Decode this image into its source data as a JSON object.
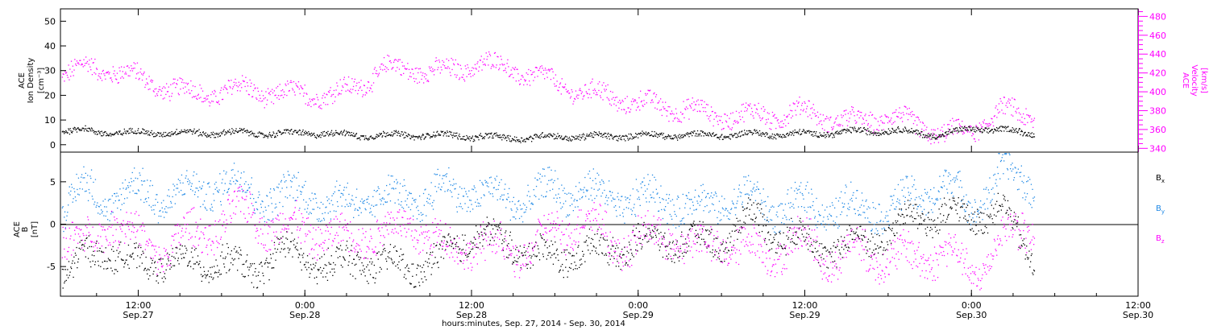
{
  "xaxis": {
    "ticks": [
      {
        "time": "12:00",
        "date": "Sep.27",
        "t": 12
      },
      {
        "time": "0:00",
        "date": "Sep.28",
        "t": 24
      },
      {
        "time": "12:00",
        "date": "Sep.28",
        "t": 36
      },
      {
        "time": "0:00",
        "date": "Sep.29",
        "t": 48
      },
      {
        "time": "12:00",
        "date": "Sep.29",
        "t": 60
      },
      {
        "time": "0:00",
        "date": "Sep.30",
        "t": 72
      },
      {
        "time": "12:00",
        "date": "Sep.30",
        "t": 84
      }
    ],
    "label": "hours:minutes, Sep. 27, 2014 - Sep. 30, 2014",
    "range_hours": [
      6.4,
      84
    ],
    "data_end_hours": 76.5
  },
  "panel1": {
    "left_label": [
      "ACE",
      "Ion Density",
      "[cm⁻³]"
    ],
    "right_label": [
      "ACE",
      "Velocity",
      "[km/s]"
    ],
    "density_color": "#000000",
    "velocity_color": "#ff00ff"
  },
  "panel2": {
    "left_label": [
      "ACE",
      "B",
      "[nT]"
    ],
    "legend": [
      {
        "text": "B",
        "sub": "x",
        "color": "#000000"
      },
      {
        "text": "B",
        "sub": "y",
        "color": "#1e88e5"
      },
      {
        "text": "B",
        "sub": "z",
        "color": "#ff00ff"
      }
    ]
  },
  "chart_data": [
    {
      "type": "scatter",
      "title": "",
      "xlabel": "hours:minutes, Sep. 27, 2014 - Sep. 30, 2014",
      "ylabel": "ACE Ion Density [cm-3]",
      "ylim": [
        -3,
        55
      ],
      "yticks": [
        0,
        10,
        20,
        30,
        40,
        50
      ],
      "y2label": "ACE Velocity [km/s]",
      "y2lim": [
        336,
        488
      ],
      "y2ticks": [
        340,
        360,
        380,
        400,
        420,
        440,
        460,
        480
      ],
      "x_units": "hours since Sep.27 0:00",
      "series": [
        {
          "name": "Ion Density",
          "color": "#000000",
          "axis": "left",
          "x": [
            6.5,
            8,
            10,
            12,
            14,
            16,
            18,
            20,
            22,
            24,
            26,
            28,
            30,
            32,
            34,
            36,
            38,
            40,
            42,
            44,
            46,
            48,
            50,
            52,
            54,
            56,
            58,
            60,
            62,
            64,
            66,
            68,
            70,
            72,
            74,
            76.5
          ],
          "y": [
            6,
            6,
            5,
            5,
            5,
            5,
            5,
            5,
            4.5,
            5,
            4.5,
            4,
            4,
            4,
            4,
            3.5,
            3,
            3,
            3.5,
            3.5,
            3.5,
            4,
            4,
            4,
            4,
            4.5,
            4.5,
            4.5,
            5,
            5.5,
            6,
            5,
            4,
            7,
            6,
            5
          ]
        },
        {
          "name": "Velocity",
          "color": "#ff00ff",
          "axis": "right",
          "x": [
            6.5,
            8,
            10,
            12,
            14,
            16,
            18,
            20,
            22,
            24,
            26,
            28,
            30,
            32,
            34,
            36,
            38,
            40,
            42,
            44,
            46,
            48,
            50,
            52,
            54,
            56,
            58,
            60,
            62,
            64,
            66,
            68,
            70,
            72,
            74,
            76.5
          ],
          "y": [
            420,
            425,
            425,
            415,
            405,
            398,
            400,
            405,
            395,
            400,
            395,
            410,
            425,
            425,
            420,
            430,
            428,
            420,
            410,
            400,
            395,
            388,
            385,
            380,
            375,
            375,
            375,
            380,
            372,
            368,
            375,
            365,
            355,
            360,
            380,
            375
          ]
        }
      ]
    },
    {
      "type": "scatter",
      "title": "",
      "xlabel": "hours:minutes, Sep. 27, 2014 - Sep. 30, 2014",
      "ylabel": "ACE B [nT]",
      "ylim": [
        -8.5,
        8.5
      ],
      "yticks": [
        -5,
        0,
        5
      ],
      "x_units": "hours since Sep.27 0:00",
      "series": [
        {
          "name": "Bx",
          "color": "#000000",
          "x": [
            6.5,
            8,
            10,
            12,
            14,
            16,
            18,
            20,
            22,
            24,
            26,
            28,
            30,
            32,
            34,
            36,
            38,
            40,
            42,
            44,
            46,
            48,
            50,
            52,
            54,
            56,
            58,
            60,
            62,
            64,
            66,
            68,
            70,
            72,
            74,
            76.5
          ],
          "y": [
            -6,
            -4,
            -3,
            -5,
            -4,
            -5,
            -4,
            -6,
            -3,
            -4,
            -5,
            -4,
            -5,
            -5,
            -4,
            -1,
            -2,
            -3,
            -4,
            -3,
            -3,
            -2,
            -2,
            -2,
            -2,
            1,
            -1,
            -2,
            -3,
            -2,
            -1,
            1,
            1,
            1,
            2,
            -4
          ]
        },
        {
          "name": "By",
          "color": "#1e88e5",
          "x": [
            6.5,
            8,
            10,
            12,
            14,
            16,
            18,
            20,
            22,
            24,
            26,
            28,
            30,
            32,
            34,
            36,
            38,
            40,
            42,
            44,
            46,
            48,
            50,
            52,
            54,
            56,
            58,
            60,
            62,
            64,
            66,
            68,
            70,
            72,
            74,
            76.5
          ],
          "y": [
            2,
            4,
            3,
            4,
            3,
            4,
            5,
            4,
            3,
            4,
            2,
            3,
            3,
            3,
            4,
            4,
            3,
            3,
            4,
            4,
            3,
            3,
            3,
            2,
            3,
            3,
            2,
            2,
            2,
            2,
            2,
            3,
            5,
            2,
            6,
            5
          ]
        },
        {
          "name": "Bz",
          "color": "#ff00ff",
          "x": [
            6.5,
            8,
            10,
            12,
            14,
            16,
            18,
            20,
            22,
            24,
            26,
            28,
            30,
            32,
            34,
            36,
            38,
            40,
            42,
            44,
            46,
            48,
            50,
            52,
            54,
            56,
            58,
            60,
            62,
            64,
            66,
            68,
            70,
            72,
            74,
            76.5
          ],
          "y": [
            -1,
            -3,
            1,
            -2,
            -3,
            -1,
            0,
            2,
            -1,
            0,
            -2,
            -1,
            -1,
            0,
            -3,
            -2,
            -3,
            -3,
            -1,
            1,
            -2,
            -2,
            -1,
            -3,
            -2,
            -3,
            -3,
            -2,
            -4,
            -3,
            -4,
            -4,
            -3,
            -6,
            -2,
            0
          ]
        }
      ]
    }
  ]
}
